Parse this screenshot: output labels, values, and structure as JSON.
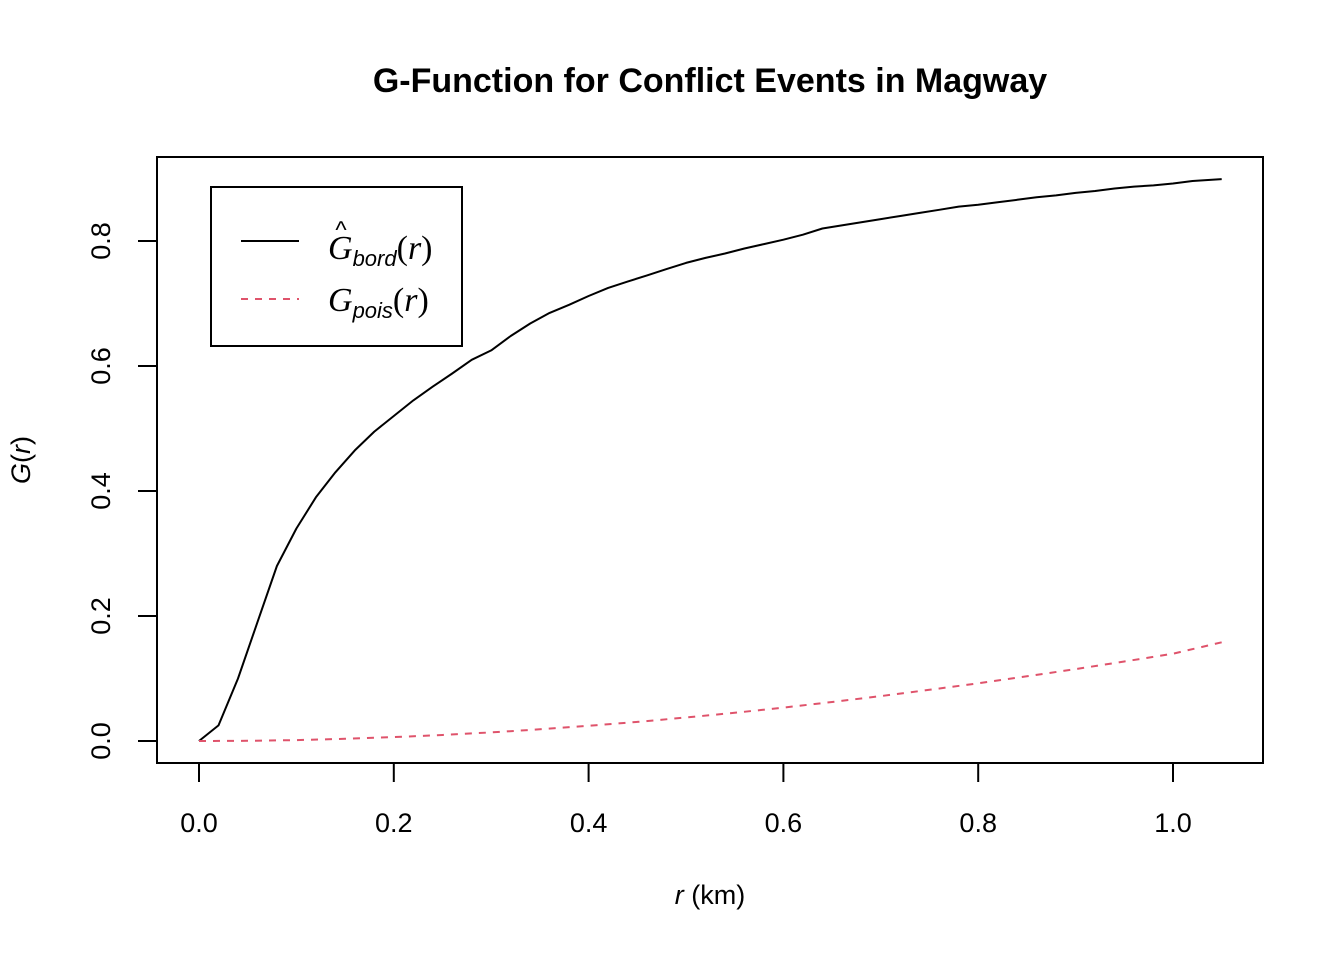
{
  "chart_data": {
    "type": "line",
    "title": "G-Function for Conflict Events in Magway",
    "xlabel_var": "r",
    "xlabel_unit": " (km)",
    "ylabel_var": "G",
    "ylabel_arg": "r",
    "xlim": [
      0,
      1.05
    ],
    "ylim": [
      0,
      0.9
    ],
    "x_ticks": [
      "0.0",
      "0.2",
      "0.4",
      "0.6",
      "0.8",
      "1.0"
    ],
    "y_ticks": [
      "0.0",
      "0.2",
      "0.4",
      "0.6",
      "0.8"
    ],
    "legend_position": "top-left",
    "series": [
      {
        "legend_main": "G",
        "legend_hat": "^",
        "legend_sub": "bord",
        "legend_arg": "r",
        "color": "#000000",
        "dash": "solid",
        "x": [
          0.0,
          0.02,
          0.04,
          0.06,
          0.08,
          0.1,
          0.12,
          0.14,
          0.16,
          0.18,
          0.2,
          0.22,
          0.24,
          0.26,
          0.28,
          0.3,
          0.32,
          0.34,
          0.36,
          0.38,
          0.4,
          0.42,
          0.44,
          0.46,
          0.48,
          0.5,
          0.52,
          0.54,
          0.56,
          0.58,
          0.6,
          0.62,
          0.64,
          0.66,
          0.68,
          0.7,
          0.72,
          0.74,
          0.76,
          0.78,
          0.8,
          0.82,
          0.84,
          0.86,
          0.88,
          0.9,
          0.92,
          0.94,
          0.96,
          0.98,
          1.0,
          1.02,
          1.05
        ],
        "y": [
          0.0,
          0.025,
          0.1,
          0.19,
          0.28,
          0.34,
          0.39,
          0.43,
          0.465,
          0.495,
          0.52,
          0.545,
          0.567,
          0.588,
          0.61,
          0.625,
          0.648,
          0.668,
          0.685,
          0.698,
          0.712,
          0.725,
          0.735,
          0.745,
          0.755,
          0.765,
          0.773,
          0.78,
          0.788,
          0.795,
          0.802,
          0.81,
          0.82,
          0.825,
          0.83,
          0.835,
          0.84,
          0.845,
          0.85,
          0.855,
          0.858,
          0.862,
          0.866,
          0.87,
          0.873,
          0.877,
          0.88,
          0.884,
          0.887,
          0.889,
          0.892,
          0.896,
          0.899
        ]
      },
      {
        "legend_main": "G",
        "legend_hat": "",
        "legend_sub": "pois",
        "legend_arg": "r",
        "color": "#DF536B",
        "dash": "dashed",
        "x": [
          0.0,
          0.05,
          0.1,
          0.15,
          0.2,
          0.25,
          0.3,
          0.35,
          0.4,
          0.45,
          0.5,
          0.55,
          0.6,
          0.65,
          0.7,
          0.75,
          0.8,
          0.85,
          0.9,
          0.95,
          1.0,
          1.05
        ],
        "y": [
          0.0,
          0.0004,
          0.0015,
          0.0035,
          0.0062,
          0.0096,
          0.0138,
          0.0187,
          0.0243,
          0.0306,
          0.0376,
          0.0452,
          0.0535,
          0.0624,
          0.0719,
          0.0819,
          0.0924,
          0.1035,
          0.1151,
          0.1272,
          0.1397,
          0.158
        ]
      }
    ]
  }
}
